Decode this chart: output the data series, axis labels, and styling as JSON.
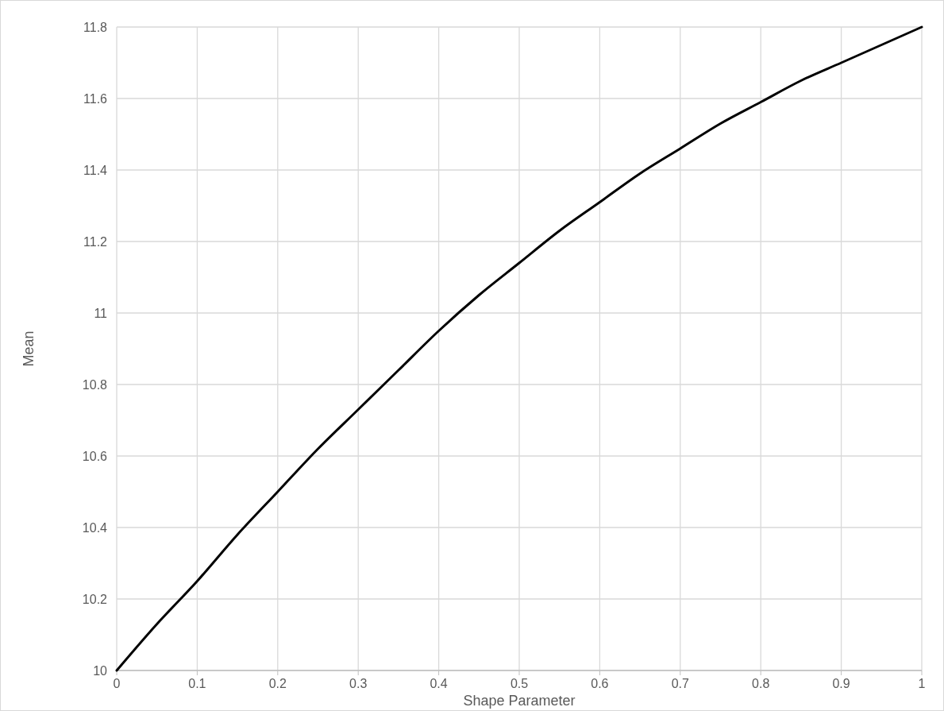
{
  "chart_data": {
    "type": "line",
    "xlabel": "Shape Parameter",
    "ylabel": "Mean",
    "x": [
      0,
      0.05,
      0.1,
      0.15,
      0.2,
      0.25,
      0.3,
      0.35,
      0.4,
      0.45,
      0.5,
      0.55,
      0.6,
      0.65,
      0.7,
      0.75,
      0.8,
      0.85,
      0.9,
      0.95,
      1
    ],
    "series": [
      {
        "color": "#000000",
        "values": [
          10,
          10.13,
          10.25,
          10.38,
          10.5,
          10.62,
          10.73,
          10.84,
          10.95,
          11.05,
          11.14,
          11.23,
          11.31,
          11.39,
          11.46,
          11.53,
          11.59,
          11.65,
          11.7,
          11.75,
          11.8
        ]
      }
    ],
    "xlim": [
      0,
      1
    ],
    "xticks": [
      0,
      0.1,
      0.2,
      0.3,
      0.4,
      0.5,
      0.6,
      0.7,
      0.8,
      0.9,
      1
    ],
    "ylim": [
      10,
      11.8
    ],
    "yticks": [
      10,
      10.2,
      10.4,
      10.6,
      10.8,
      11,
      11.2,
      11.4,
      11.6,
      11.8
    ],
    "grid": true,
    "marker": "none",
    "line_style": "solid"
  }
}
